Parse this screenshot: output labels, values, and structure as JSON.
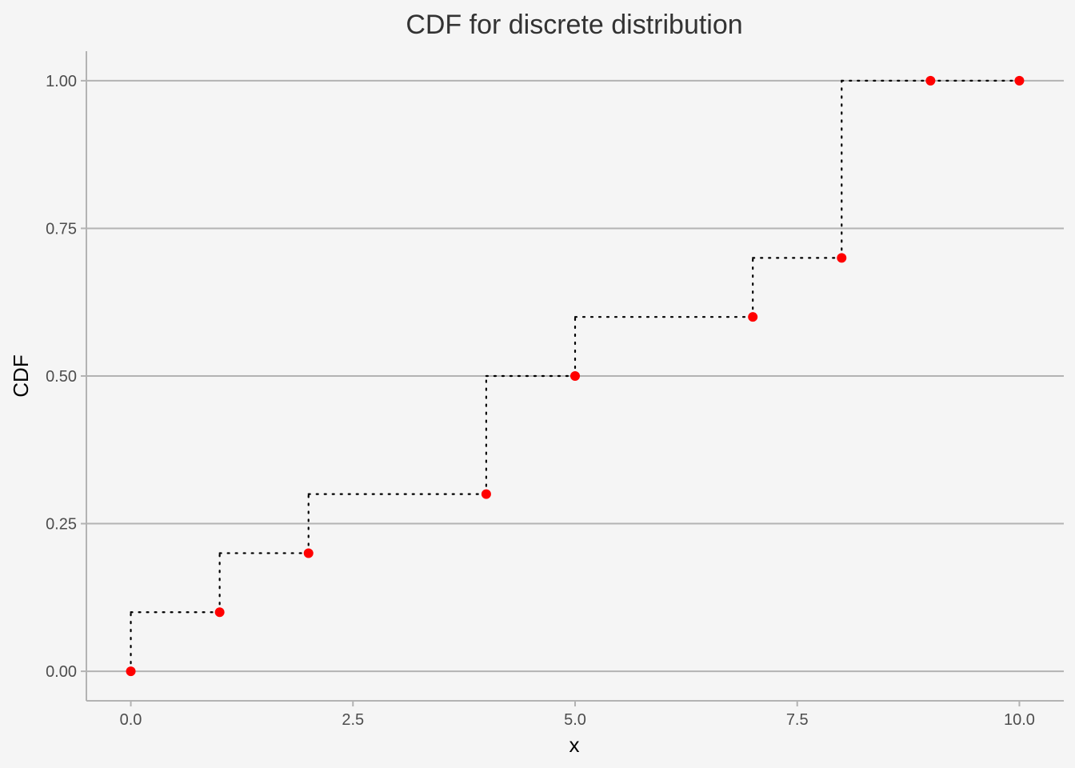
{
  "chart_data": {
    "type": "line",
    "title": "CDF for discrete distribution",
    "xlabel": "x",
    "ylabel": "CDF",
    "xlim": [
      -0.5,
      10.5
    ],
    "ylim": [
      -0.05,
      1.05
    ],
    "x_ticks": [
      0,
      2.5,
      5,
      7.5,
      10
    ],
    "x_tick_labels": [
      "0.0",
      "2.5",
      "5.0",
      "7.5",
      "10.0"
    ],
    "y_ticks": [
      0,
      0.25,
      0.5,
      0.75,
      1
    ],
    "y_tick_labels": [
      "0.00",
      "0.25",
      "0.50",
      "0.75",
      "1.00"
    ],
    "grid": "horizontal major",
    "series": [
      {
        "x": [
          0,
          1,
          2,
          4,
          5,
          7,
          8,
          9,
          10
        ],
        "y": [
          0,
          0.1,
          0.2,
          0.3,
          0.5,
          0.6,
          0.7,
          1.0,
          1.0
        ]
      }
    ],
    "colors": {
      "points": "#ff0000",
      "steps": "#000000",
      "grid": "#b3b3b3",
      "background": "#f5f5f5"
    }
  }
}
